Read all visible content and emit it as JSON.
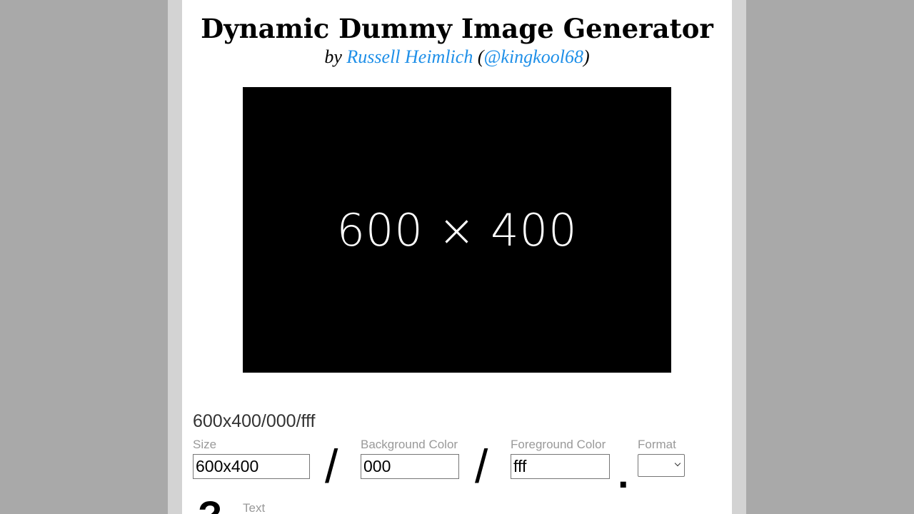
{
  "header": {
    "title": "Dynamic Dummy Image Generator",
    "by_prefix": "by ",
    "author_name": "Russell Heimlich",
    "open_paren": " (",
    "author_handle": "@kingkool68",
    "close_paren": ")"
  },
  "preview": {
    "label": "600 × 400",
    "background_color": "#000000",
    "foreground_color": "#ffffff"
  },
  "path_display": "600x400/000/fff",
  "form": {
    "size": {
      "label": "Size",
      "value": "600x400"
    },
    "separator": "/",
    "background": {
      "label": "Background Color",
      "value": "000"
    },
    "foreground": {
      "label": "Foreground Color",
      "value": "fff"
    },
    "ext_dot": ".",
    "format": {
      "label": "Format",
      "value": ""
    },
    "text": {
      "label": "Text",
      "glyph": "?"
    }
  },
  "colors": {
    "link": "#1e8fe8",
    "label_gray": "#999999",
    "page_bg": "#a9a9a9"
  }
}
